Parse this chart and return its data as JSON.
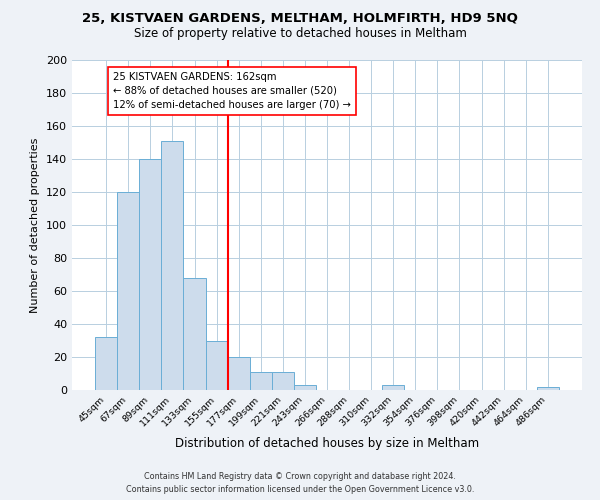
{
  "title": "25, KISTVAEN GARDENS, MELTHAM, HOLMFIRTH, HD9 5NQ",
  "subtitle": "Size of property relative to detached houses in Meltham",
  "xlabel": "Distribution of detached houses by size in Meltham",
  "ylabel": "Number of detached properties",
  "bar_labels": [
    "45sqm",
    "67sqm",
    "89sqm",
    "111sqm",
    "133sqm",
    "155sqm",
    "177sqm",
    "199sqm",
    "221sqm",
    "243sqm",
    "266sqm",
    "288sqm",
    "310sqm",
    "332sqm",
    "354sqm",
    "376sqm",
    "398sqm",
    "420sqm",
    "442sqm",
    "464sqm",
    "486sqm"
  ],
  "bar_values": [
    32,
    120,
    140,
    151,
    68,
    30,
    20,
    11,
    11,
    3,
    0,
    0,
    0,
    3,
    0,
    0,
    0,
    0,
    0,
    0,
    2
  ],
  "bar_color": "#cddcec",
  "bar_edge_color": "#6aaed6",
  "reference_line_x": 5.5,
  "reference_label": "25 KISTVAEN GARDENS: 162sqm",
  "annotation_line1": "← 88% of detached houses are smaller (520)",
  "annotation_line2": "12% of semi-detached houses are larger (70) →",
  "ylim": [
    0,
    200
  ],
  "yticks": [
    0,
    20,
    40,
    60,
    80,
    100,
    120,
    140,
    160,
    180,
    200
  ],
  "footer1": "Contains HM Land Registry data © Crown copyright and database right 2024.",
  "footer2": "Contains public sector information licensed under the Open Government Licence v3.0.",
  "bg_color": "#eef2f7",
  "plot_bg_color": "#ffffff",
  "grid_color": "#b8cfe0"
}
